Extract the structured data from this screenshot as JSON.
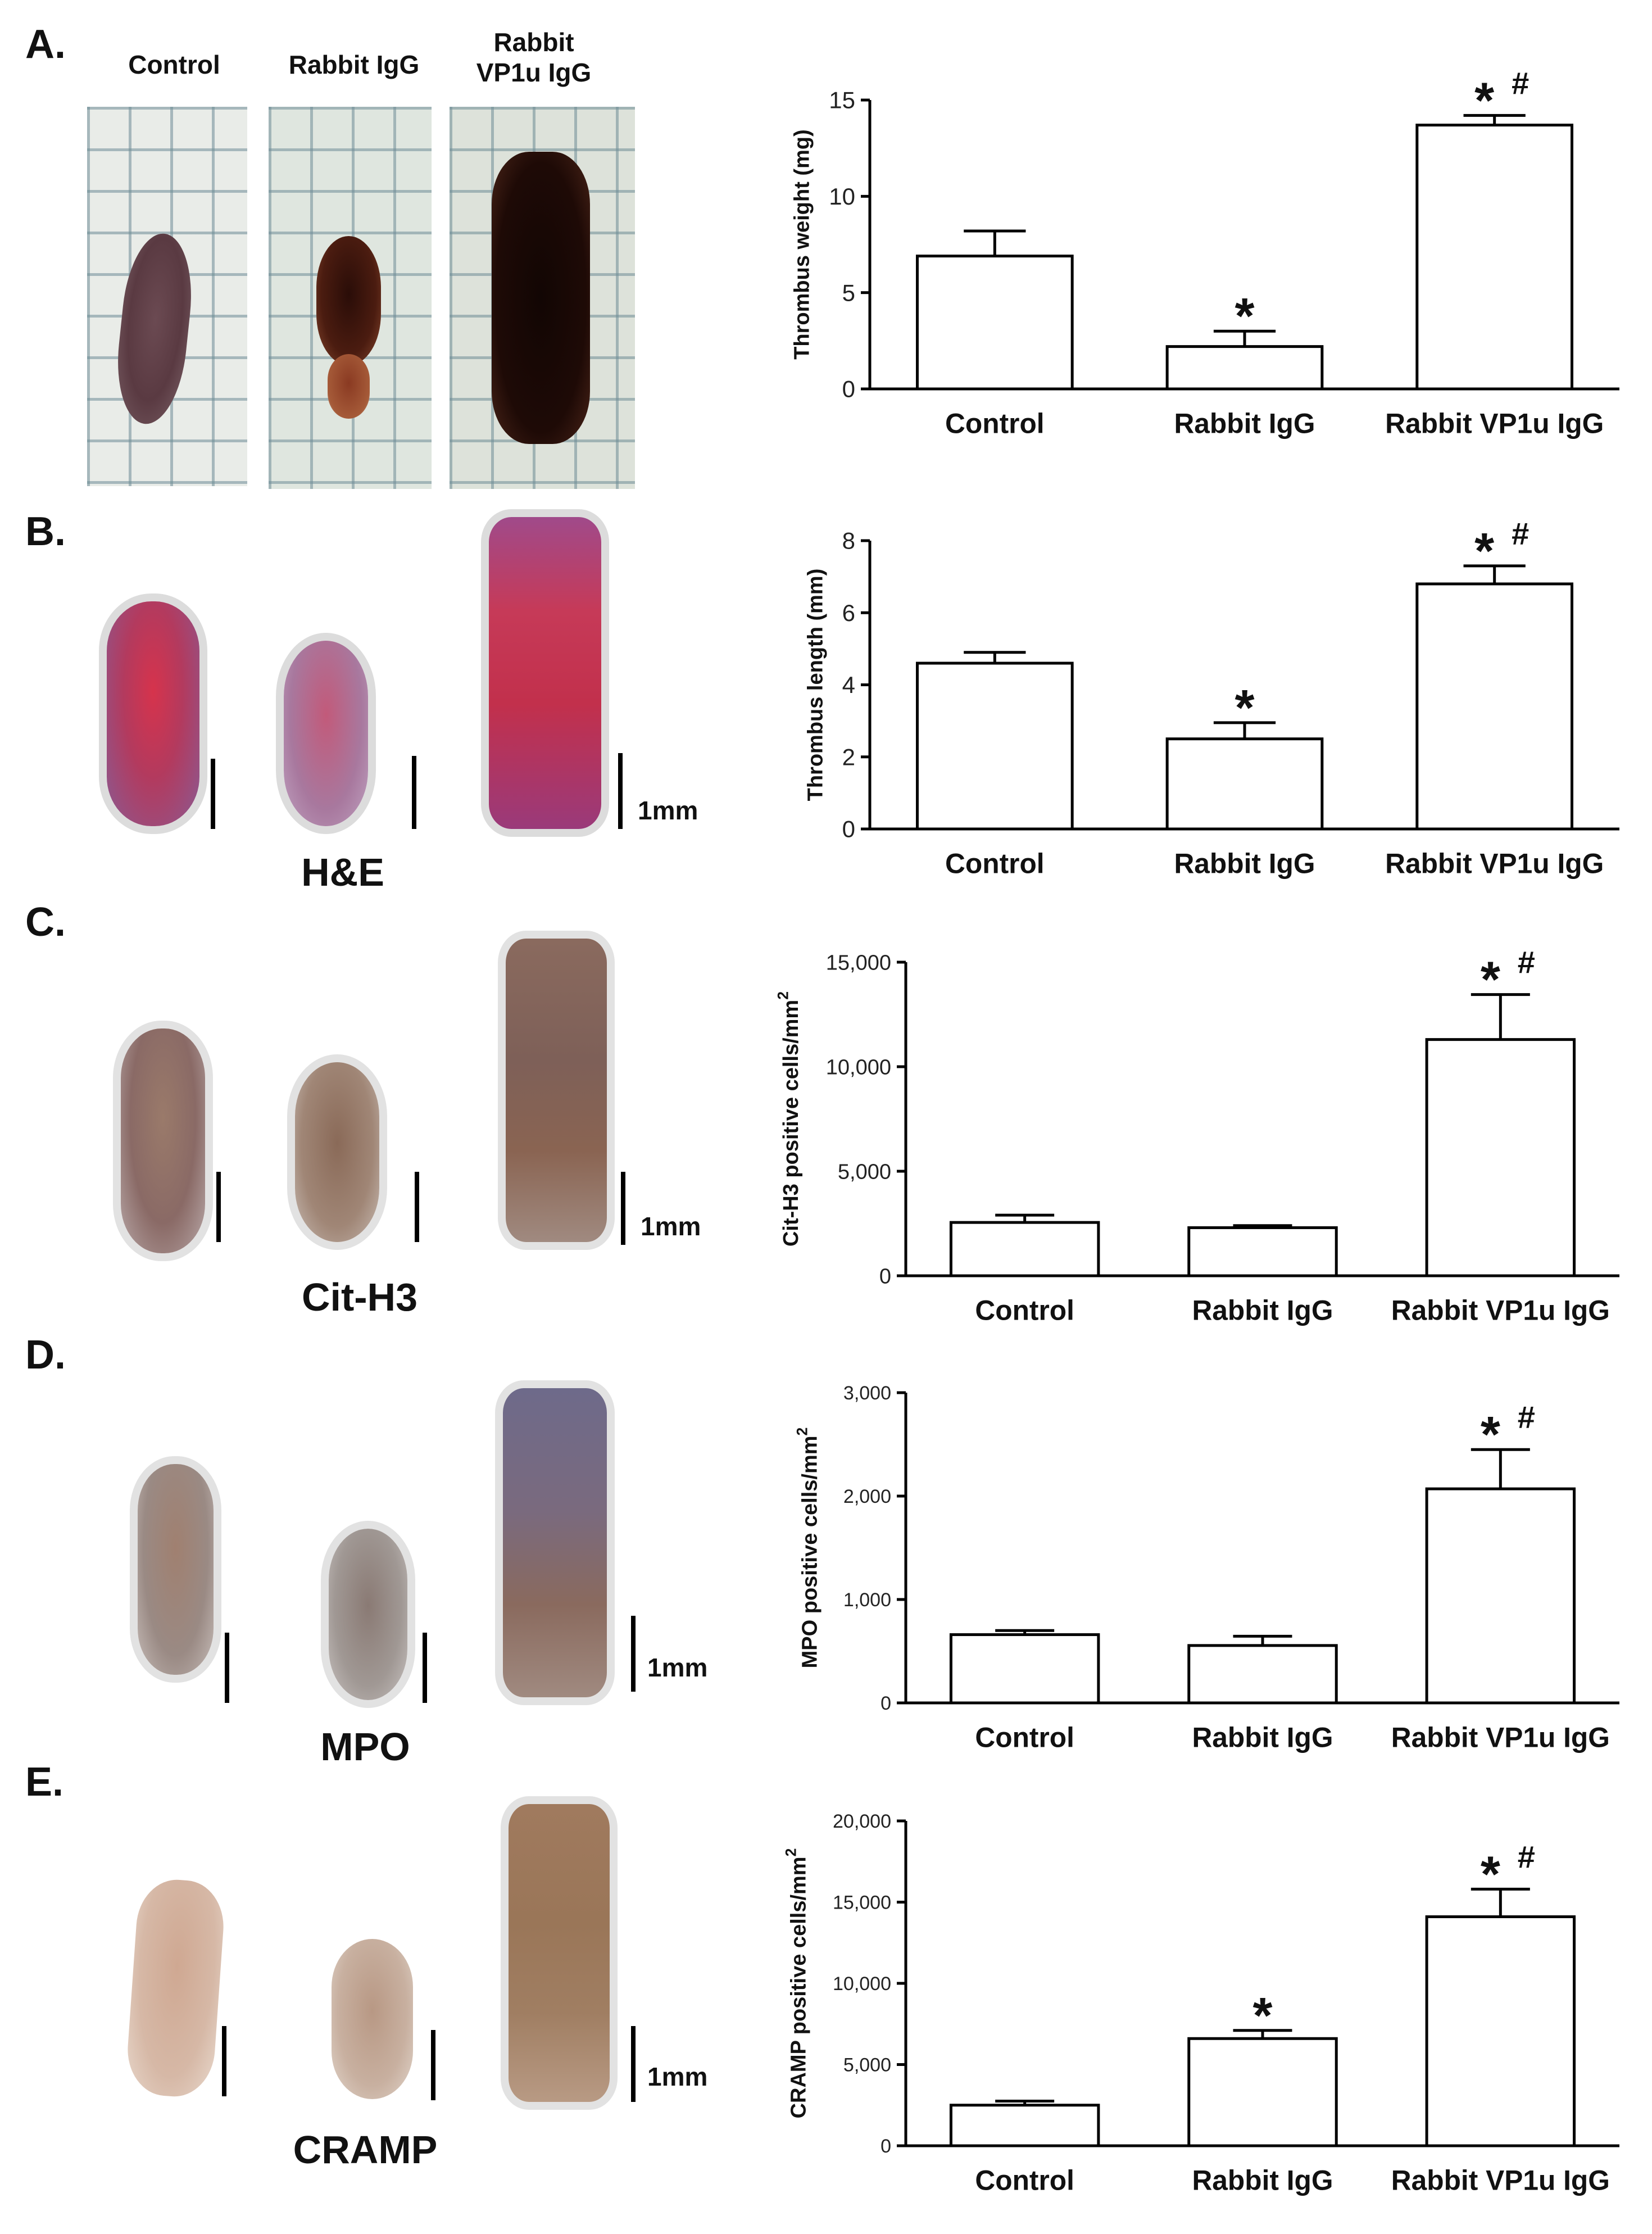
{
  "panels": [
    {
      "letter": "A.",
      "stain": ""
    },
    {
      "letter": "B.",
      "stain": "H&E"
    },
    {
      "letter": "C.",
      "stain": "Cit-H3"
    },
    {
      "letter": "D.",
      "stain": "MPO"
    },
    {
      "letter": "E.",
      "stain": "CRAMP"
    }
  ],
  "photo_labels": {
    "control": "Control",
    "rabbit_igg": "Rabbit IgG",
    "rabbit_vp1u_line1": "Rabbit",
    "rabbit_vp1u_line2": "VP1u IgG"
  },
  "scale_label": "1mm",
  "colors": {
    "bar_fill": "#ffffff",
    "stroke": "#000000",
    "he_stain": "#c8344e",
    "ihc_stain": "#8a6248",
    "thrombus_dark": "#2a0f0a"
  },
  "chart_data": [
    {
      "type": "bar",
      "categories": [
        "Control",
        "Rabbit IgG",
        "Rabbit VP1u IgG"
      ],
      "values": [
        6.9,
        2.2,
        13.7
      ],
      "errors": [
        1.3,
        0.8,
        0.5
      ],
      "annotations": [
        "",
        "*",
        "*#"
      ],
      "ylabel": "Thrombus weight (mg)",
      "ylabel_sup": "",
      "ylim": [
        0,
        15
      ],
      "yticks": [
        0,
        5,
        10,
        15
      ],
      "ytick_labels": [
        "0",
        "5",
        "10",
        "15"
      ]
    },
    {
      "type": "bar",
      "categories": [
        "Control",
        "Rabbit IgG",
        "Rabbit VP1u IgG"
      ],
      "values": [
        4.6,
        2.5,
        6.8
      ],
      "errors": [
        0.3,
        0.45,
        0.5
      ],
      "annotations": [
        "",
        "*",
        "*#"
      ],
      "ylabel": "Thrombus length (mm)",
      "ylabel_sup": "",
      "ylim": [
        0,
        8
      ],
      "yticks": [
        0,
        2,
        4,
        6,
        8
      ],
      "ytick_labels": [
        "0",
        "2",
        "4",
        "6",
        "8"
      ]
    },
    {
      "type": "bar",
      "categories": [
        "Control",
        "Rabbit IgG",
        "Rabbit VP1u IgG"
      ],
      "values": [
        2550,
        2300,
        11300
      ],
      "errors": [
        350,
        100,
        2150
      ],
      "annotations": [
        "",
        "",
        "*#"
      ],
      "ylabel": "Cit-H3 positive cells/mm",
      "ylabel_sup": "2",
      "ylim": [
        0,
        15000
      ],
      "yticks": [
        0,
        5000,
        10000,
        15000
      ],
      "ytick_labels": [
        "0",
        "5,000",
        "10,000",
        "15,000"
      ]
    },
    {
      "type": "bar",
      "categories": [
        "Control",
        "Rabbit IgG",
        "Rabbit VP1u IgG"
      ],
      "values": [
        660,
        555,
        2070
      ],
      "errors": [
        40,
        90,
        380
      ],
      "annotations": [
        "",
        "",
        "*#"
      ],
      "ylabel": "MPO positive cells/mm",
      "ylabel_sup": "2",
      "ylim": [
        0,
        3000
      ],
      "yticks": [
        0,
        1000,
        2000,
        3000
      ],
      "ytick_labels": [
        "0",
        "1,000",
        "2,000",
        "3,000"
      ]
    },
    {
      "type": "bar",
      "categories": [
        "Control",
        "Rabbit IgG",
        "Rabbit VP1u IgG"
      ],
      "values": [
        2500,
        6600,
        14100
      ],
      "errors": [
        250,
        500,
        1700
      ],
      "annotations": [
        "",
        "*",
        "*#"
      ],
      "ylabel": "CRAMP positive cells/mm",
      "ylabel_sup": "2",
      "ylim": [
        0,
        20000
      ],
      "yticks": [
        0,
        5000,
        10000,
        15000,
        20000
      ],
      "ytick_labels": [
        "0",
        "5,000",
        "10,000",
        "15,000",
        "20,000"
      ]
    }
  ]
}
